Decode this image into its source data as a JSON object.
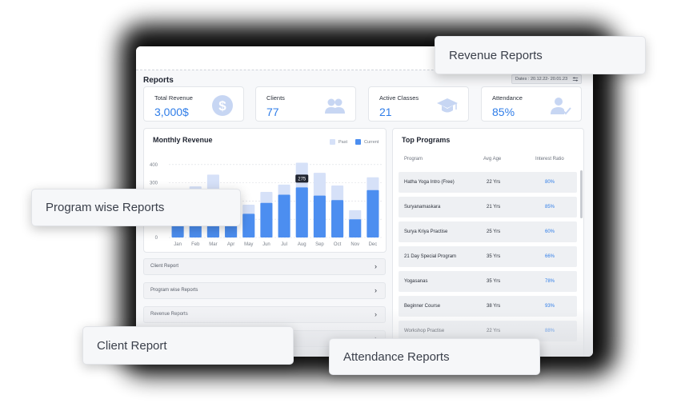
{
  "header": {
    "title": "Reports",
    "dates": "Dates : 20.12.22- 20.01.23"
  },
  "kpis": [
    {
      "label": "Total Revenue",
      "value": "3,000$",
      "icon": "dollar-icon"
    },
    {
      "label": "Clients",
      "value": "77",
      "icon": "users-icon"
    },
    {
      "label": "Active Classes",
      "value": "21",
      "icon": "graduation-cap-icon"
    },
    {
      "label": "Attendance",
      "value": "85%",
      "icon": "user-check-icon"
    }
  ],
  "monthly_revenue": {
    "title": "Monthly Revenue",
    "legend_past": "Past",
    "legend_current": "Current",
    "tooltip": "275"
  },
  "chart_data": {
    "type": "bar",
    "title": "Monthly Revenue",
    "categories": [
      "Jan",
      "Feb",
      "Mar",
      "Apr",
      "May",
      "Jun",
      "Jul",
      "Aug",
      "Sep",
      "Oct",
      "Nov",
      "Dec"
    ],
    "series": [
      {
        "name": "Past",
        "values": [
          200,
          280,
          345,
          255,
          180,
          250,
          290,
          410,
          355,
          285,
          150,
          330
        ]
      },
      {
        "name": "Current",
        "values": [
          175,
          205,
          220,
          170,
          130,
          190,
          235,
          275,
          230,
          205,
          100,
          260
        ]
      }
    ],
    "yticks": [
      0,
      100,
      200,
      300,
      400
    ],
    "ylim": [
      0,
      430
    ],
    "grid": true,
    "legend": "top-right",
    "colors": {
      "past": "#d6e1f8",
      "current": "#4c8ef0"
    }
  },
  "accordions": [
    {
      "label": "Client Report"
    },
    {
      "label": "Program wise Reports"
    },
    {
      "label": "Revenue Reports"
    },
    {
      "label": ""
    }
  ],
  "top_programs": {
    "title": "Top Programs",
    "headers": [
      "Program",
      "Avg Age",
      "Interest Ratio"
    ],
    "rows": [
      {
        "program": "Hatha Yoga Intro (Free)",
        "age": "22 Yrs",
        "ratio": "80%"
      },
      {
        "program": "Suryanamaskara",
        "age": "21 Yrs",
        "ratio": "85%"
      },
      {
        "program": "Surya Kriya Practise",
        "age": "25 Yrs",
        "ratio": "60%"
      },
      {
        "program": "21 Day Special Program",
        "age": "35 Yrs",
        "ratio": "66%"
      },
      {
        "program": "Yogasanas",
        "age": "35 Yrs",
        "ratio": "78%"
      },
      {
        "program": "Beginner Course",
        "age": "38 Yrs",
        "ratio": "93%"
      },
      {
        "program": "Workshop Practise",
        "age": "22 Yrs",
        "ratio": "88%"
      }
    ]
  },
  "float_labels": {
    "revenue": "Revenue Reports",
    "program": "Program wise Reports",
    "client": "Client Report",
    "attendance": "Attendance Reports"
  },
  "colors": {
    "accent": "#2f7de8",
    "icon": "#c7d6f3"
  }
}
